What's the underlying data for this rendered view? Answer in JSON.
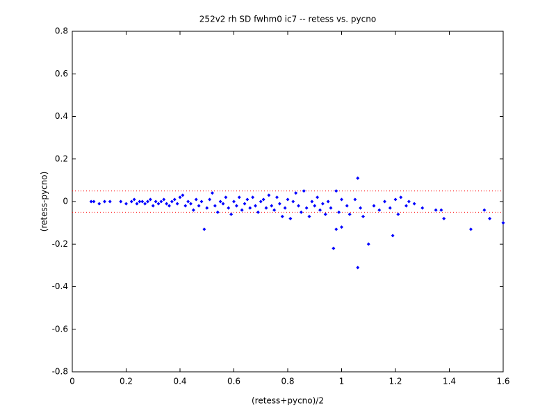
{
  "chart_data": {
    "type": "scatter",
    "title": "252v2 rh SD fwhm0 ic7 -- retess vs. pycno",
    "x_label": "(retess+pycno)/2",
    "y_label": "(retess-pycno)",
    "xlim": [
      0,
      1.6
    ],
    "ylim": [
      -0.8,
      0.8
    ],
    "xticks": [
      0,
      0.2,
      0.4,
      0.6,
      0.8,
      1,
      1.2,
      1.4,
      1.6
    ],
    "yticks": [
      -0.8,
      -0.6,
      -0.4,
      -0.2,
      0,
      0.2,
      0.4,
      0.6,
      0.8
    ],
    "reference_lines": {
      "color": "#ff0000",
      "values": [
        0.05,
        -0.05
      ]
    },
    "series": [
      {
        "color": "#0000ff",
        "x": [
          0.07,
          0.08,
          0.1,
          0.12,
          0.14,
          0.18,
          0.2,
          0.22,
          0.23,
          0.24,
          0.25,
          0.26,
          0.27,
          0.28,
          0.29,
          0.3,
          0.31,
          0.32,
          0.33,
          0.34,
          0.35,
          0.36,
          0.37,
          0.38,
          0.39,
          0.4,
          0.41,
          0.42,
          0.43,
          0.44,
          0.45,
          0.46,
          0.47,
          0.48,
          0.49,
          0.5,
          0.51,
          0.52,
          0.53,
          0.54,
          0.55,
          0.56,
          0.57,
          0.58,
          0.59,
          0.6,
          0.61,
          0.62,
          0.63,
          0.64,
          0.65,
          0.66,
          0.67,
          0.68,
          0.69,
          0.7,
          0.71,
          0.72,
          0.73,
          0.74,
          0.75,
          0.76,
          0.77,
          0.78,
          0.79,
          0.8,
          0.81,
          0.82,
          0.83,
          0.84,
          0.85,
          0.86,
          0.87,
          0.88,
          0.89,
          0.9,
          0.91,
          0.92,
          0.93,
          0.94,
          0.95,
          0.96,
          0.97,
          0.98,
          0.98,
          0.99,
          1.0,
          1.0,
          1.02,
          1.03,
          1.05,
          1.06,
          1.06,
          1.07,
          1.08,
          1.1,
          1.12,
          1.14,
          1.16,
          1.18,
          1.19,
          1.2,
          1.21,
          1.22,
          1.24,
          1.25,
          1.27,
          1.3,
          1.35,
          1.37,
          1.38,
          1.48,
          1.53,
          1.55,
          1.6
        ],
        "values": [
          0,
          0,
          -0.01,
          0,
          0,
          0,
          -0.01,
          0,
          0.01,
          -0.01,
          0,
          0,
          -0.01,
          0,
          0.01,
          -0.02,
          0,
          -0.01,
          0,
          0.01,
          -0.01,
          -0.02,
          0,
          0.01,
          -0.01,
          0.02,
          0.03,
          -0.02,
          0,
          -0.01,
          -0.04,
          0.01,
          -0.02,
          0,
          -0.13,
          -0.03,
          0.01,
          0.04,
          -0.02,
          -0.05,
          0,
          -0.01,
          0.02,
          -0.03,
          -0.06,
          0,
          -0.02,
          0.02,
          -0.04,
          -0.01,
          0.01,
          -0.03,
          0.02,
          -0.02,
          -0.05,
          0,
          0.01,
          -0.03,
          0.03,
          -0.02,
          -0.04,
          0.02,
          -0.01,
          -0.07,
          -0.03,
          0.01,
          -0.08,
          0,
          0.04,
          -0.02,
          -0.05,
          0.05,
          -0.03,
          -0.07,
          0,
          -0.02,
          0.02,
          -0.04,
          -0.01,
          -0.06,
          0,
          -0.03,
          -0.22,
          0.05,
          -0.13,
          -0.05,
          0.01,
          -0.12,
          -0.02,
          -0.06,
          0.01,
          0.11,
          -0.31,
          -0.03,
          -0.07,
          -0.2,
          -0.02,
          -0.04,
          0,
          -0.03,
          -0.16,
          0.01,
          -0.06,
          0.02,
          -0.02,
          0,
          -0.01,
          -0.03,
          -0.04,
          -0.04,
          -0.08,
          -0.13,
          -0.04,
          -0.08,
          -0.1
        ]
      }
    ]
  }
}
